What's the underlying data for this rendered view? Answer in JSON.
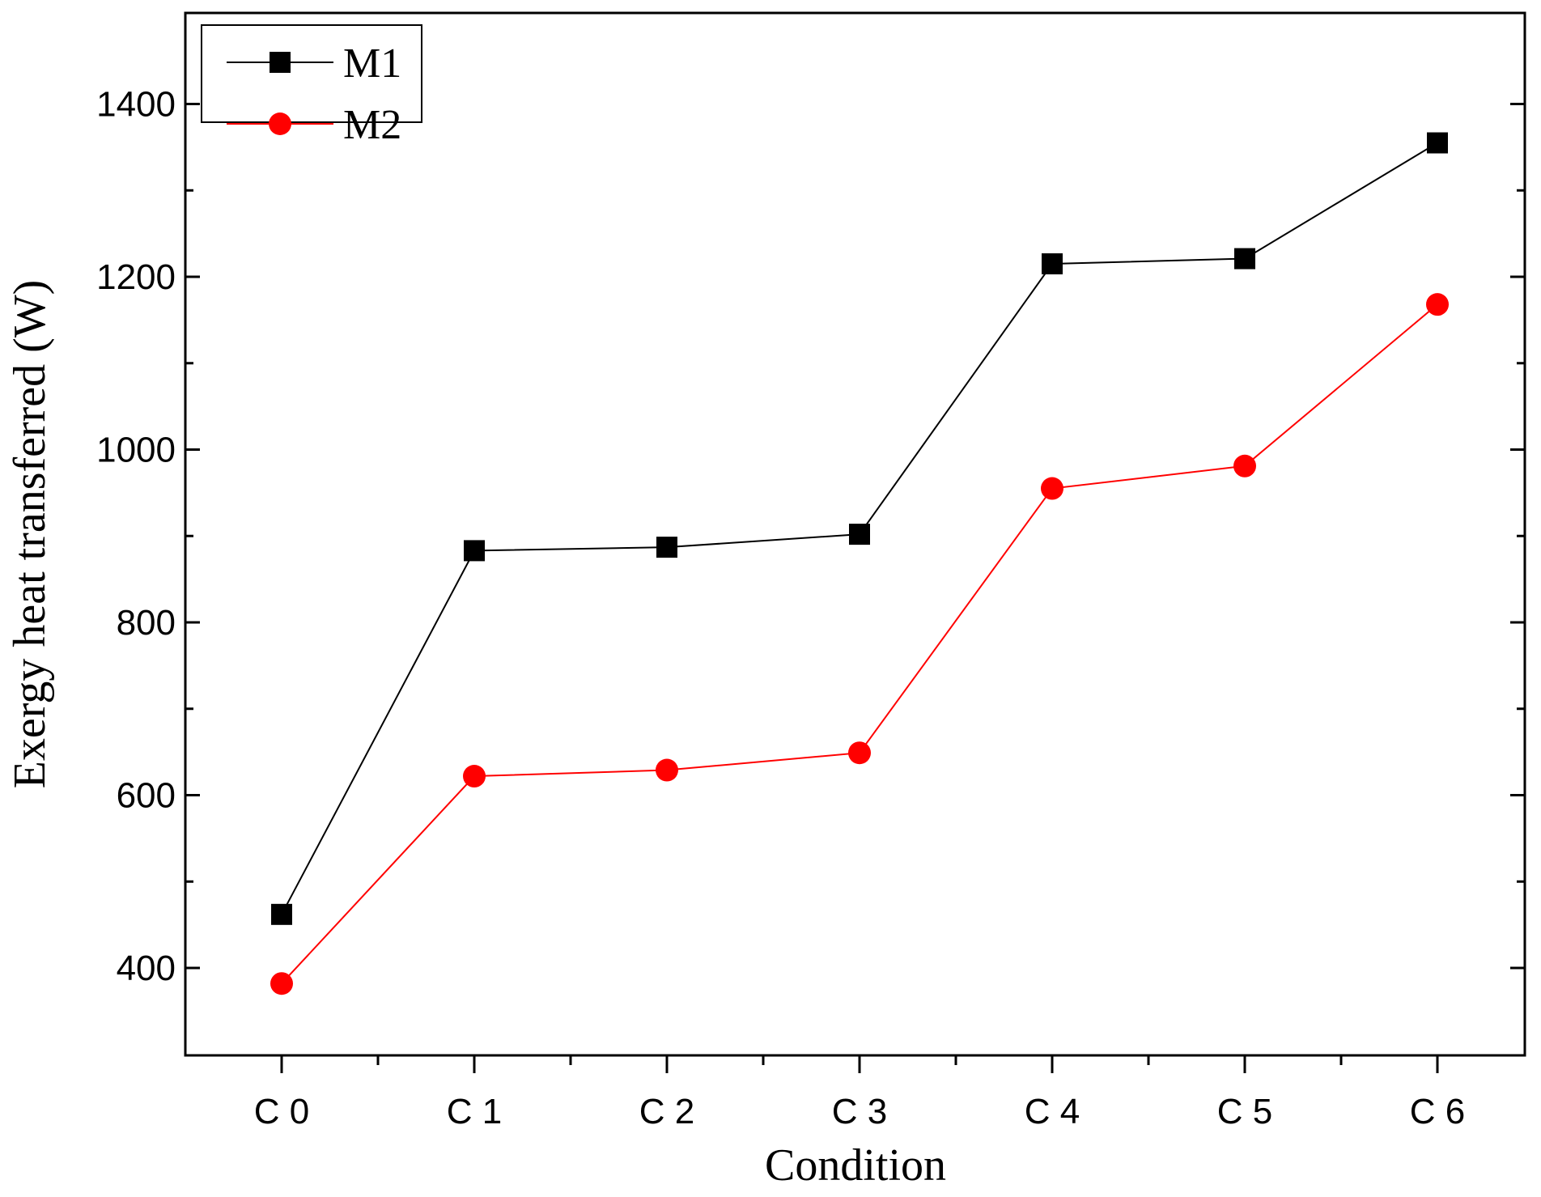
{
  "chart_data": {
    "type": "line",
    "title": "",
    "xlabel": "Condition",
    "ylabel": "Exergy heat transferred (W)",
    "categories": [
      "C 0",
      "C 1",
      "C 2",
      "C 3",
      "C 4",
      "C 5",
      "C 6"
    ],
    "ylim": [
      300,
      1500
    ],
    "yticks": [
      400,
      600,
      800,
      1000,
      1200,
      1400
    ],
    "yticks_minor": [
      500,
      700,
      900,
      1100,
      1300
    ],
    "grid": false,
    "legend_position": "top-left",
    "series": [
      {
        "name": "M1",
        "color": "#000000",
        "marker": "square",
        "values": [
          462,
          883,
          887,
          902,
          1215,
          1221,
          1355
        ]
      },
      {
        "name": "M2",
        "color": "#ff0000",
        "marker": "circle",
        "values": [
          382,
          622,
          629,
          649,
          955,
          981,
          1168
        ]
      }
    ]
  }
}
